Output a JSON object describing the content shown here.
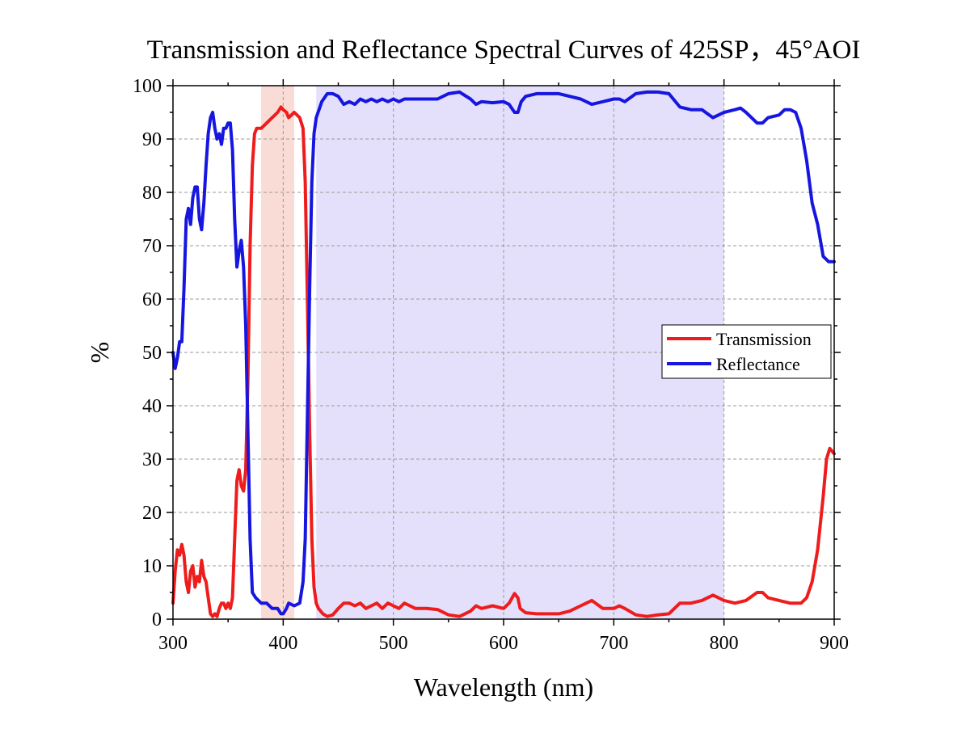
{
  "chart_data": {
    "type": "line",
    "title": "Transmission and Reflectance Spectral Curves of 425SP，45°AOI",
    "xlabel": "Wavelength (nm)",
    "ylabel": "%",
    "xlim": [
      300,
      900
    ],
    "ylim": [
      0,
      100
    ],
    "x_ticks": [
      300,
      400,
      500,
      600,
      700,
      800,
      900
    ],
    "y_ticks": [
      0,
      10,
      20,
      30,
      40,
      50,
      60,
      70,
      80,
      90,
      100
    ],
    "grid": true,
    "legend_position": "center-right",
    "shaded_bands": [
      {
        "from": 380,
        "to": 410,
        "color": "#fadcd6"
      },
      {
        "from": 430,
        "to": 800,
        "color": "#e4e0fb"
      }
    ],
    "series": [
      {
        "name": "Transmission",
        "color": "#ee1c1c",
        "points": [
          [
            300,
            3
          ],
          [
            302,
            9
          ],
          [
            304,
            13
          ],
          [
            306,
            12
          ],
          [
            308,
            14
          ],
          [
            310,
            12
          ],
          [
            312,
            7
          ],
          [
            314,
            5
          ],
          [
            316,
            9
          ],
          [
            318,
            10
          ],
          [
            320,
            6
          ],
          [
            322,
            8
          ],
          [
            324,
            7
          ],
          [
            326,
            11
          ],
          [
            328,
            8
          ],
          [
            330,
            7
          ],
          [
            332,
            4
          ],
          [
            334,
            1
          ],
          [
            336,
            0.5
          ],
          [
            338,
            1
          ],
          [
            340,
            0.5
          ],
          [
            342,
            2
          ],
          [
            344,
            3
          ],
          [
            346,
            3
          ],
          [
            348,
            2
          ],
          [
            350,
            3
          ],
          [
            352,
            2
          ],
          [
            354,
            4
          ],
          [
            356,
            15
          ],
          [
            358,
            26
          ],
          [
            360,
            28
          ],
          [
            362,
            25
          ],
          [
            364,
            24
          ],
          [
            366,
            28
          ],
          [
            368,
            45
          ],
          [
            370,
            70
          ],
          [
            372,
            85
          ],
          [
            374,
            91
          ],
          [
            376,
            92
          ],
          [
            378,
            92
          ],
          [
            380,
            92
          ],
          [
            385,
            93
          ],
          [
            390,
            94
          ],
          [
            395,
            95
          ],
          [
            398,
            96
          ],
          [
            400,
            95.5
          ],
          [
            403,
            95
          ],
          [
            405,
            94
          ],
          [
            410,
            95
          ],
          [
            415,
            94
          ],
          [
            418,
            92
          ],
          [
            420,
            82
          ],
          [
            422,
            60
          ],
          [
            424,
            35
          ],
          [
            426,
            15
          ],
          [
            428,
            6
          ],
          [
            430,
            3
          ],
          [
            432,
            2
          ],
          [
            436,
            1
          ],
          [
            440,
            0.5
          ],
          [
            445,
            0.8
          ],
          [
            450,
            2
          ],
          [
            455,
            3
          ],
          [
            460,
            3
          ],
          [
            465,
            2.5
          ],
          [
            470,
            3
          ],
          [
            475,
            2
          ],
          [
            480,
            2.5
          ],
          [
            485,
            3
          ],
          [
            490,
            2
          ],
          [
            495,
            3
          ],
          [
            500,
            2.5
          ],
          [
            505,
            2
          ],
          [
            510,
            3
          ],
          [
            515,
            2.5
          ],
          [
            520,
            2
          ],
          [
            530,
            2
          ],
          [
            540,
            1.8
          ],
          [
            550,
            0.8
          ],
          [
            560,
            0.5
          ],
          [
            570,
            1.5
          ],
          [
            575,
            2.5
          ],
          [
            580,
            2
          ],
          [
            590,
            2.5
          ],
          [
            600,
            2
          ],
          [
            605,
            3
          ],
          [
            610,
            4.8
          ],
          [
            613,
            4
          ],
          [
            615,
            2
          ],
          [
            620,
            1.2
          ],
          [
            630,
            1
          ],
          [
            640,
            1
          ],
          [
            650,
            1
          ],
          [
            660,
            1.5
          ],
          [
            670,
            2.5
          ],
          [
            680,
            3.5
          ],
          [
            690,
            2
          ],
          [
            700,
            2
          ],
          [
            705,
            2.5
          ],
          [
            710,
            2
          ],
          [
            720,
            0.8
          ],
          [
            730,
            0.5
          ],
          [
            740,
            0.8
          ],
          [
            750,
            1
          ],
          [
            760,
            3
          ],
          [
            770,
            3
          ],
          [
            780,
            3.5
          ],
          [
            790,
            4.5
          ],
          [
            800,
            3.5
          ],
          [
            810,
            3
          ],
          [
            820,
            3.5
          ],
          [
            830,
            5
          ],
          [
            835,
            5
          ],
          [
            840,
            4
          ],
          [
            850,
            3.5
          ],
          [
            860,
            3
          ],
          [
            870,
            3
          ],
          [
            875,
            4
          ],
          [
            880,
            7
          ],
          [
            885,
            13
          ],
          [
            890,
            23
          ],
          [
            893,
            30
          ],
          [
            896,
            32
          ],
          [
            900,
            31
          ]
        ]
      },
      {
        "name": "Reflectance",
        "color": "#1616e0",
        "points": [
          [
            300,
            50
          ],
          [
            302,
            47
          ],
          [
            304,
            49
          ],
          [
            306,
            52
          ],
          [
            308,
            52
          ],
          [
            310,
            62
          ],
          [
            312,
            75
          ],
          [
            314,
            77
          ],
          [
            316,
            74
          ],
          [
            318,
            79
          ],
          [
            320,
            81
          ],
          [
            322,
            81
          ],
          [
            324,
            75
          ],
          [
            326,
            73
          ],
          [
            328,
            78
          ],
          [
            330,
            85
          ],
          [
            332,
            91
          ],
          [
            334,
            94
          ],
          [
            336,
            95
          ],
          [
            338,
            92
          ],
          [
            340,
            90
          ],
          [
            342,
            91
          ],
          [
            344,
            89
          ],
          [
            346,
            92
          ],
          [
            348,
            92
          ],
          [
            350,
            93
          ],
          [
            352,
            93
          ],
          [
            354,
            88
          ],
          [
            356,
            75
          ],
          [
            358,
            66
          ],
          [
            360,
            69
          ],
          [
            362,
            71
          ],
          [
            364,
            66
          ],
          [
            366,
            55
          ],
          [
            368,
            35
          ],
          [
            370,
            15
          ],
          [
            372,
            5
          ],
          [
            375,
            4
          ],
          [
            380,
            3
          ],
          [
            385,
            3
          ],
          [
            390,
            2
          ],
          [
            395,
            2
          ],
          [
            398,
            1
          ],
          [
            400,
            1
          ],
          [
            403,
            2
          ],
          [
            405,
            3
          ],
          [
            410,
            2.5
          ],
          [
            415,
            3
          ],
          [
            418,
            7
          ],
          [
            420,
            15
          ],
          [
            422,
            38
          ],
          [
            424,
            62
          ],
          [
            426,
            82
          ],
          [
            428,
            91
          ],
          [
            430,
            94
          ],
          [
            435,
            97
          ],
          [
            440,
            98.5
          ],
          [
            445,
            98.5
          ],
          [
            450,
            98
          ],
          [
            455,
            96.5
          ],
          [
            460,
            97
          ],
          [
            465,
            96.5
          ],
          [
            470,
            97.5
          ],
          [
            475,
            97
          ],
          [
            480,
            97.5
          ],
          [
            485,
            97
          ],
          [
            490,
            97.5
          ],
          [
            495,
            97
          ],
          [
            500,
            97.5
          ],
          [
            505,
            97
          ],
          [
            510,
            97.5
          ],
          [
            520,
            97.5
          ],
          [
            530,
            97.5
          ],
          [
            540,
            97.5
          ],
          [
            550,
            98.5
          ],
          [
            560,
            98.8
          ],
          [
            570,
            97.5
          ],
          [
            575,
            96.5
          ],
          [
            580,
            97
          ],
          [
            590,
            96.8
          ],
          [
            600,
            97
          ],
          [
            605,
            96.5
          ],
          [
            610,
            95
          ],
          [
            613,
            95
          ],
          [
            616,
            97
          ],
          [
            620,
            98
          ],
          [
            630,
            98.5
          ],
          [
            640,
            98.5
          ],
          [
            650,
            98.5
          ],
          [
            660,
            98
          ],
          [
            670,
            97.5
          ],
          [
            680,
            96.5
          ],
          [
            690,
            97
          ],
          [
            700,
            97.5
          ],
          [
            705,
            97.5
          ],
          [
            710,
            97
          ],
          [
            720,
            98.5
          ],
          [
            730,
            98.8
          ],
          [
            740,
            98.8
          ],
          [
            750,
            98.5
          ],
          [
            760,
            96
          ],
          [
            770,
            95.5
          ],
          [
            780,
            95.5
          ],
          [
            790,
            94
          ],
          [
            800,
            95
          ],
          [
            810,
            95.5
          ],
          [
            815,
            95.8
          ],
          [
            820,
            95
          ],
          [
            830,
            93
          ],
          [
            835,
            93
          ],
          [
            840,
            94
          ],
          [
            850,
            94.5
          ],
          [
            855,
            95.5
          ],
          [
            860,
            95.5
          ],
          [
            865,
            95
          ],
          [
            870,
            92
          ],
          [
            875,
            86
          ],
          [
            880,
            78
          ],
          [
            885,
            74
          ],
          [
            890,
            68
          ],
          [
            895,
            67
          ],
          [
            900,
            67
          ]
        ]
      }
    ]
  }
}
